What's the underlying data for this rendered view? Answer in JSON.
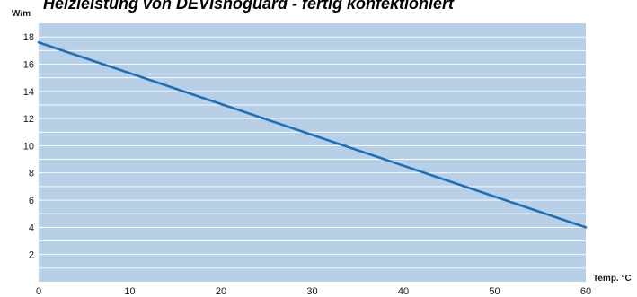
{
  "chart_data": {
    "type": "line",
    "title": "Heizleistung von DEVIsnoguard - fertig konfektioniert",
    "ylabel": "W/m",
    "xlabel": "Temp. °C",
    "xlim": [
      0,
      60
    ],
    "ylim": [
      0,
      19
    ],
    "x_ticks": [
      0,
      10,
      20,
      30,
      40,
      50,
      60
    ],
    "y_ticks": [
      2,
      4,
      6,
      8,
      10,
      12,
      14,
      16,
      18
    ],
    "y_minor_gridlines": [
      1,
      3,
      5,
      7,
      9,
      11,
      13,
      15,
      17
    ],
    "grid": true,
    "series": [
      {
        "x": [
          0,
          60
        ],
        "y": [
          17.6,
          4.0
        ]
      }
    ],
    "colors": {
      "plot_background": "#b8cfe8",
      "gridline": "#ffffff",
      "line": "#1f6fb5",
      "text": "#1a1a1a"
    }
  }
}
